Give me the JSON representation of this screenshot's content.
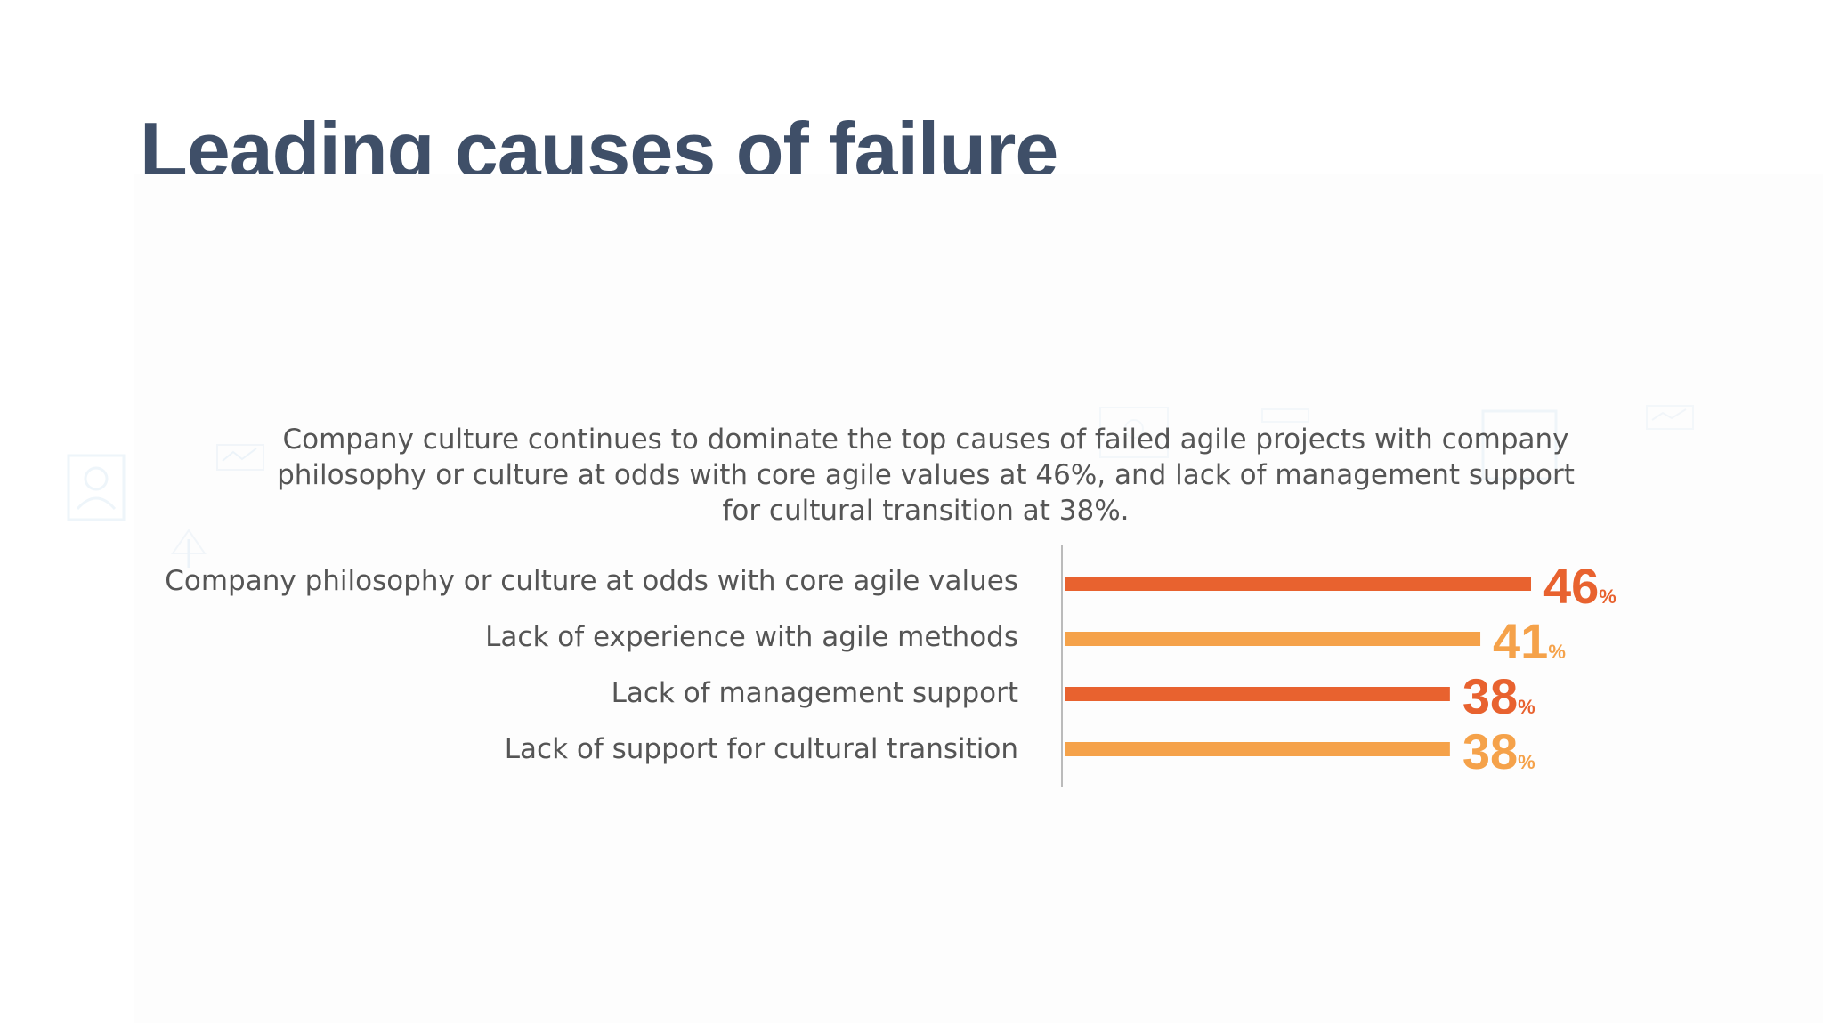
{
  "slide": {
    "title": "Leading causes of failure"
  },
  "colors": {
    "title": "#3f4f68",
    "bar_dark": "#e8622f",
    "bar_light": "#f5a24a",
    "text": "#555555",
    "axis": "#bbbbbb"
  },
  "chart_data": {
    "type": "bar",
    "orientation": "horizontal",
    "subtitle": "Company culture continues to dominate the top causes of failed agile projects with company philosophy or culture at odds with core agile values at 46%, and lack of management support for cultural transition at 38%.",
    "categories": [
      "Company philosophy or culture at odds with core agile values",
      "Lack of experience with agile methods",
      "Lack of management support",
      "Lack of support for cultural transition"
    ],
    "values": [
      46,
      41,
      38,
      38
    ],
    "value_suffix": "%",
    "bar_colors": [
      "#e8622f",
      "#f5a24a",
      "#e8622f",
      "#f5a24a"
    ],
    "xlim": [
      0,
      46
    ],
    "grid": false,
    "legend": "none"
  }
}
